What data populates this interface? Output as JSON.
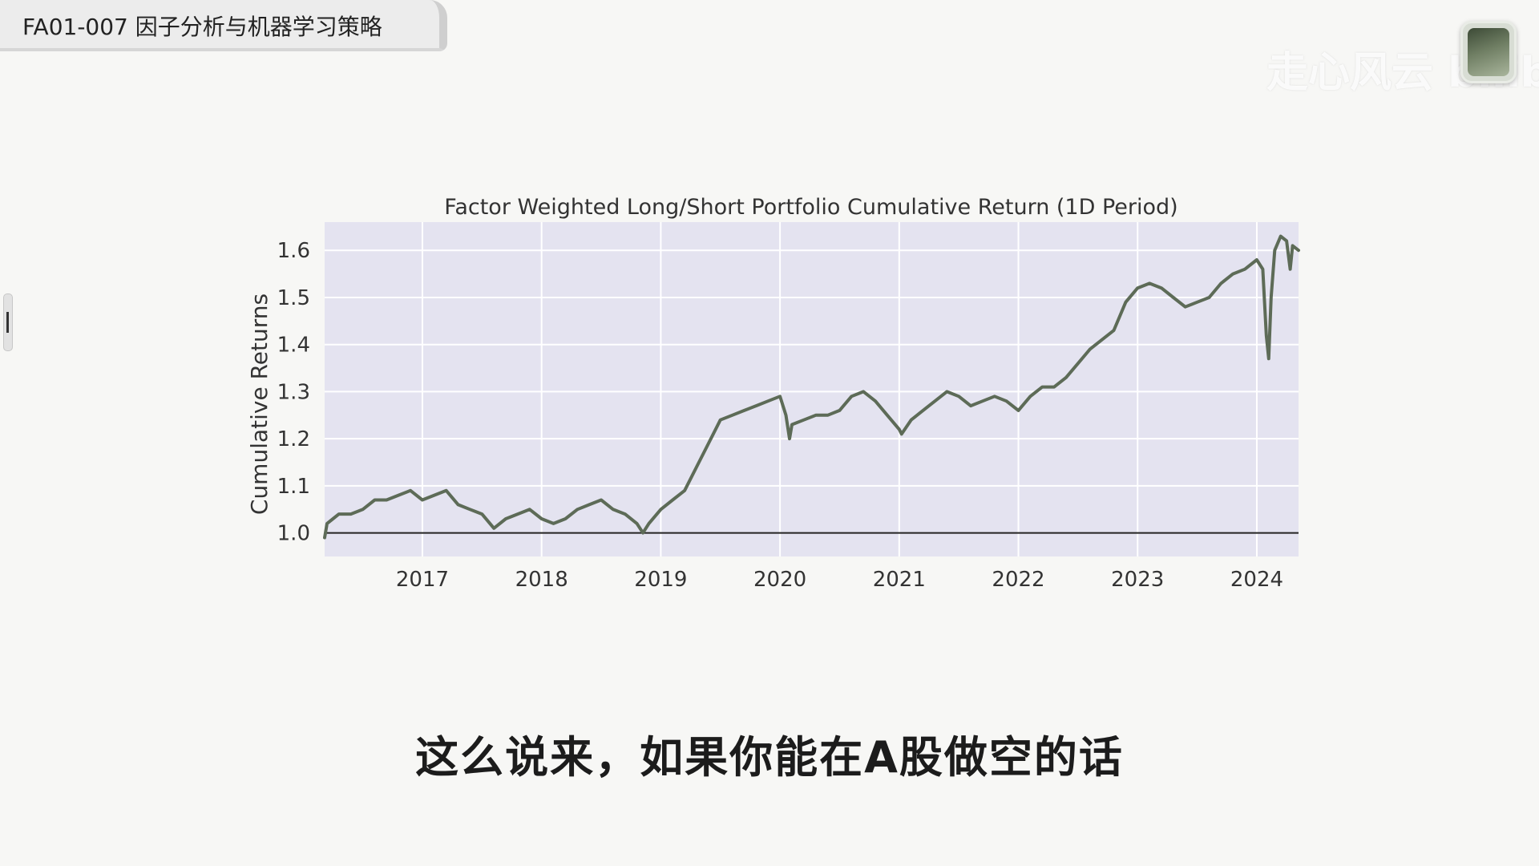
{
  "window": {
    "title": "FA01-007 因子分析与机器学习策略",
    "watermark": "走心风云 bilibili"
  },
  "subtitle": "这么说来，如果你能在A股做空的话",
  "chart_data": {
    "type": "line",
    "title": "Factor Weighted Long/Short Portfolio Cumulative Return (1D Period)",
    "xlabel": "",
    "ylabel": "Cumulative Returns",
    "xlim": [
      2016.18,
      2024.35
    ],
    "ylim": [
      0.95,
      1.66
    ],
    "xticks": [
      2017,
      2018,
      2019,
      2020,
      2021,
      2022,
      2023,
      2024
    ],
    "yticks": [
      1.0,
      1.1,
      1.2,
      1.3,
      1.4,
      1.5,
      1.6
    ],
    "ytick_labels": [
      "1.0",
      "1.1",
      "1.2",
      "1.3",
      "1.4",
      "1.5",
      "1.6"
    ],
    "grid": true,
    "baseline": 1.0,
    "colors": {
      "background": "#e4e3f0",
      "grid": "#ffffff",
      "line": "#5d6b57",
      "baseline": "#222222",
      "text": "#333333"
    },
    "series": [
      {
        "x": [
          2016.18,
          2016.2,
          2016.25,
          2016.3,
          2016.4,
          2016.5,
          2016.6,
          2016.7,
          2016.8,
          2016.9,
          2017.0,
          2017.1,
          2017.2,
          2017.3,
          2017.4,
          2017.5,
          2017.6,
          2017.7,
          2017.8,
          2017.9,
          2018.0,
          2018.1,
          2018.2,
          2018.3,
          2018.4,
          2018.5,
          2018.6,
          2018.7,
          2018.8,
          2018.85,
          2018.9,
          2019.0,
          2019.1,
          2019.2,
          2019.3,
          2019.4,
          2019.5,
          2019.6,
          2019.7,
          2019.8,
          2019.9,
          2020.0,
          2020.05,
          2020.08,
          2020.1,
          2020.2,
          2020.3,
          2020.4,
          2020.5,
          2020.6,
          2020.7,
          2020.8,
          2020.9,
          2021.0,
          2021.02,
          2021.1,
          2021.2,
          2021.3,
          2021.4,
          2021.5,
          2021.6,
          2021.7,
          2021.8,
          2021.9,
          2022.0,
          2022.1,
          2022.2,
          2022.3,
          2022.4,
          2022.5,
          2022.6,
          2022.7,
          2022.8,
          2022.9,
          2023.0,
          2023.1,
          2023.2,
          2023.3,
          2023.4,
          2023.5,
          2023.6,
          2023.7,
          2023.8,
          2023.9,
          2024.0,
          2024.05,
          2024.08,
          2024.1,
          2024.12,
          2024.15,
          2024.2,
          2024.25,
          2024.28,
          2024.3,
          2024.35
        ],
        "y": [
          0.99,
          1.02,
          1.03,
          1.04,
          1.04,
          1.05,
          1.07,
          1.07,
          1.08,
          1.09,
          1.07,
          1.08,
          1.09,
          1.06,
          1.05,
          1.04,
          1.01,
          1.03,
          1.04,
          1.05,
          1.03,
          1.02,
          1.03,
          1.05,
          1.06,
          1.07,
          1.05,
          1.04,
          1.02,
          1.0,
          1.02,
          1.05,
          1.07,
          1.09,
          1.14,
          1.19,
          1.24,
          1.25,
          1.26,
          1.27,
          1.28,
          1.29,
          1.25,
          1.2,
          1.23,
          1.24,
          1.25,
          1.25,
          1.26,
          1.29,
          1.3,
          1.28,
          1.25,
          1.22,
          1.21,
          1.24,
          1.26,
          1.28,
          1.3,
          1.29,
          1.27,
          1.28,
          1.29,
          1.28,
          1.26,
          1.29,
          1.31,
          1.31,
          1.33,
          1.36,
          1.39,
          1.41,
          1.43,
          1.49,
          1.52,
          1.53,
          1.52,
          1.5,
          1.48,
          1.49,
          1.5,
          1.53,
          1.55,
          1.56,
          1.58,
          1.56,
          1.42,
          1.37,
          1.5,
          1.6,
          1.63,
          1.62,
          1.56,
          1.61,
          1.6
        ]
      }
    ]
  }
}
